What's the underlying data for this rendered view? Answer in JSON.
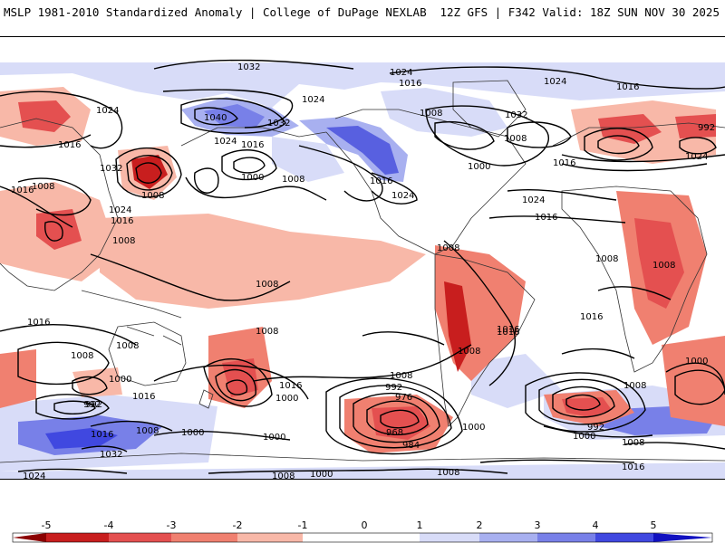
{
  "header": {
    "left_title": "MSLP 1981-2010 Standardized Anomaly | College of DuPage NEXLAB",
    "right_title": "12Z GFS | F342 Valid: 18Z SUN NOV 30 2025"
  },
  "colorbar": {
    "ticks": [
      "-5",
      "-4",
      "-3",
      "-2",
      "-1",
      "0",
      "1",
      "2",
      "3",
      "4",
      "5"
    ],
    "colors": {
      "neg5": "#8b0000",
      "neg4": "#c81e1e",
      "neg3": "#e45050",
      "neg2": "#f08070",
      "neg1": "#f8b8a8",
      "zero": "#ffffff",
      "pos1": "#d8dcf8",
      "pos2": "#a8b0f0",
      "pos3": "#7880e8",
      "pos4": "#4048e0",
      "pos5": "#1010c0"
    }
  },
  "map": {
    "contour_labels": [
      {
        "text": "1032"
      },
      {
        "text": "1024"
      },
      {
        "text": "1016"
      },
      {
        "text": "1024"
      },
      {
        "text": "1024"
      },
      {
        "text": "1016"
      },
      {
        "text": "1024"
      },
      {
        "text": "1008"
      },
      {
        "text": "1032"
      },
      {
        "text": "1040"
      },
      {
        "text": "1032"
      },
      {
        "text": "1024"
      },
      {
        "text": "1016"
      },
      {
        "text": "1008"
      },
      {
        "text": "1016"
      },
      {
        "text": "1032"
      },
      {
        "text": "1008"
      },
      {
        "text": "1000"
      },
      {
        "text": "1008"
      },
      {
        "text": "1016"
      },
      {
        "text": "1024"
      },
      {
        "text": "1008"
      },
      {
        "text": "1024"
      },
      {
        "text": "1016"
      },
      {
        "text": "1016"
      },
      {
        "text": "1008"
      },
      {
        "text": "1008"
      },
      {
        "text": "1008"
      },
      {
        "text": "1000"
      },
      {
        "text": "1016"
      },
      {
        "text": "1008"
      },
      {
        "text": "1008"
      },
      {
        "text": "1016"
      },
      {
        "text": "1016"
      },
      {
        "text": "1024"
      },
      {
        "text": "1016"
      },
      {
        "text": "1008"
      },
      {
        "text": "1008"
      },
      {
        "text": "1000"
      },
      {
        "text": "992"
      },
      {
        "text": "1016"
      },
      {
        "text": "1008"
      },
      {
        "text": "1016"
      },
      {
        "text": "1000"
      },
      {
        "text": "1000"
      },
      {
        "text": "1008"
      },
      {
        "text": "992"
      },
      {
        "text": "976"
      },
      {
        "text": "968"
      },
      {
        "text": "984"
      },
      {
        "text": "1000"
      },
      {
        "text": "1008"
      },
      {
        "text": "992"
      },
      {
        "text": "1000"
      },
      {
        "text": "1008"
      },
      {
        "text": "1016"
      },
      {
        "text": "1016"
      },
      {
        "text": "1008"
      },
      {
        "text": "1000"
      },
      {
        "text": "1024"
      },
      {
        "text": "1032"
      },
      {
        "text": "1016"
      },
      {
        "text": "1008"
      },
      {
        "text": "1008"
      },
      {
        "text": "1000"
      },
      {
        "text": "992"
      },
      {
        "text": "992"
      },
      {
        "text": "1000"
      },
      {
        "text": "1024"
      },
      {
        "text": "1016"
      },
      {
        "text": "1008"
      }
    ]
  }
}
